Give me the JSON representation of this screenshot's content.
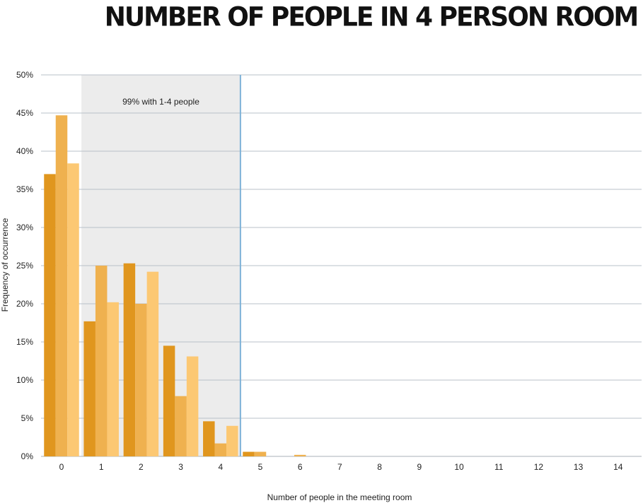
{
  "chart_data": {
    "type": "bar",
    "title": "NUMBER OF PEOPLE IN 4 PERSON ROOM",
    "xlabel": "Number of people in the meeting room",
    "ylabel": "Frequency of occurrence",
    "categories": [
      "0",
      "1",
      "2",
      "3",
      "4",
      "5",
      "6",
      "7",
      "8",
      "9",
      "10",
      "11",
      "12",
      "13",
      "14"
    ],
    "ylim": [
      0,
      50
    ],
    "yticks": [
      "0%",
      "5%",
      "10%",
      "15%",
      "20%",
      "25%",
      "30%",
      "35%",
      "40%",
      "45%",
      "50%"
    ],
    "grid": true,
    "legend": "none",
    "series": [
      {
        "color": "#e0961e",
        "values": [
          37.0,
          17.7,
          25.3,
          14.5,
          4.6,
          0.6,
          0.0,
          0,
          0,
          0,
          0,
          0,
          0,
          0,
          0
        ]
      },
      {
        "color": "#efb14f",
        "values": [
          44.7,
          25.0,
          20.0,
          7.9,
          1.7,
          0.6,
          0.2,
          0,
          0,
          0,
          0,
          0,
          0,
          0,
          0
        ]
      },
      {
        "color": "#fcc873",
        "values": [
          38.4,
          20.2,
          24.2,
          13.1,
          4.0,
          0.0,
          0.0,
          0,
          0,
          0,
          0,
          0,
          0,
          0,
          0
        ]
      }
    ],
    "annotation": {
      "text": "99% with 1-4 people",
      "x_start": 0.5,
      "x_end": 4.5
    }
  }
}
